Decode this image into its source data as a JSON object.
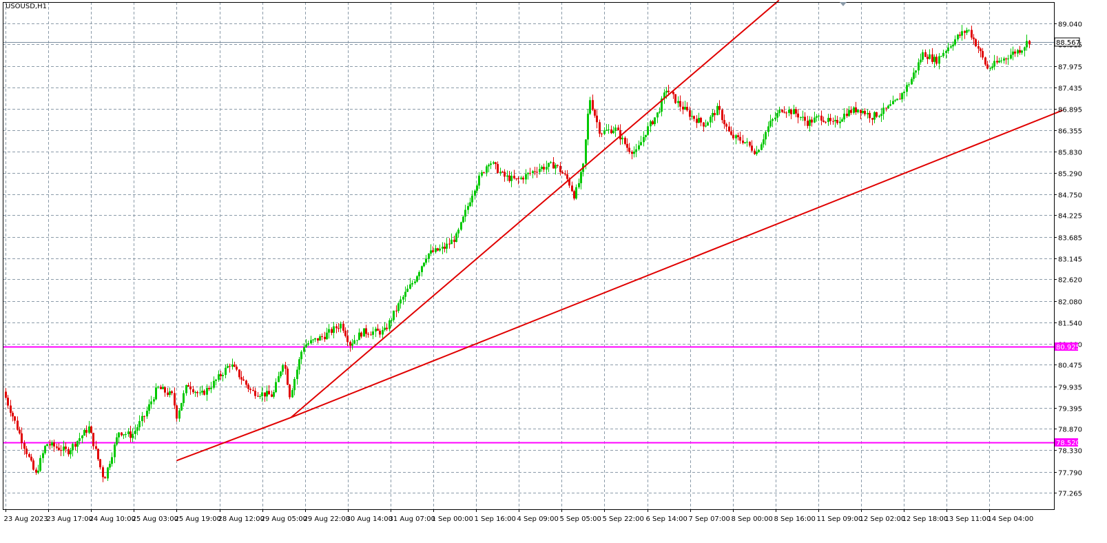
{
  "window": {
    "title": "USOUSD,H1"
  },
  "chart_data": {
    "type": "candlestick",
    "symbol": "USOUSD",
    "timeframe": "H1",
    "ylim": [
      77.265,
      89.3
    ],
    "grid": true,
    "colors": {
      "bull": "#00c800",
      "bear": "#e00000",
      "grid": "#8a9aa8",
      "trendline": "#e00000",
      "level": "#ff00ff",
      "current_price_line": "#7a8c9e",
      "axis_text": "#000000"
    },
    "y_ticks": [
      "89.040",
      "88.515",
      "87.975",
      "87.435",
      "86.895",
      "86.355",
      "85.830",
      "85.290",
      "84.750",
      "84.225",
      "83.685",
      "83.145",
      "82.620",
      "82.080",
      "81.540",
      "81.000",
      "80.475",
      "79.935",
      "79.395",
      "78.870",
      "78.330",
      "77.790",
      "77.265"
    ],
    "x_ticks": [
      "23 Aug 2023",
      "23 Aug 17:00",
      "24 Aug 10:00",
      "25 Aug 03:00",
      "25 Aug 19:00",
      "28 Aug 12:00",
      "29 Aug 05:00",
      "29 Aug 22:00",
      "30 Aug 14:00",
      "31 Aug 07:00",
      "1 Sep 00:00",
      "1 Sep 16:00",
      "4 Sep 09:00",
      "5 Sep 05:00",
      "5 Sep 22:00",
      "6 Sep 14:00",
      "7 Sep 07:00",
      "8 Sep 00:00",
      "8 Sep 16:00",
      "11 Sep 09:00",
      "12 Sep 02:00",
      "12 Sep 18:00",
      "13 Sep 11:00",
      "14 Sep 04:00"
    ],
    "current_price": {
      "label": "88.567",
      "value": 88.567
    },
    "levels": [
      {
        "label": "80.925",
        "value": 80.925
      },
      {
        "label": "78.520",
        "value": 78.52
      }
    ],
    "trendlines": [
      {
        "from": [
          4,
          78.07
        ],
        "to": [
          6.67,
          79.15
        ]
      },
      {
        "from": [
          6.67,
          79.15
        ],
        "to": [
          24.71,
          86.86
        ]
      },
      {
        "from": [
          6.67,
          79.15
        ],
        "to": [
          18.08,
          89.62
        ]
      }
    ],
    "price_path": [
      [
        0.0,
        79.8
      ],
      [
        0.5,
        78.4
      ],
      [
        0.75,
        77.7
      ],
      [
        1.0,
        78.5
      ],
      [
        1.5,
        78.3
      ],
      [
        2.0,
        78.9
      ],
      [
        2.35,
        77.6
      ],
      [
        2.7,
        78.8
      ],
      [
        3.0,
        78.7
      ],
      [
        3.3,
        79.2
      ],
      [
        3.6,
        79.9
      ],
      [
        3.95,
        79.7
      ],
      [
        4.05,
        79.2
      ],
      [
        4.3,
        80.0
      ],
      [
        4.6,
        79.7
      ],
      [
        4.9,
        80.0
      ],
      [
        5.3,
        80.5
      ],
      [
        5.8,
        79.8
      ],
      [
        6.3,
        79.7
      ],
      [
        6.55,
        80.6
      ],
      [
        6.7,
        79.7
      ],
      [
        7.0,
        80.95
      ],
      [
        7.5,
        81.2
      ],
      [
        7.9,
        81.5
      ],
      [
        8.1,
        81.0
      ],
      [
        8.4,
        81.3
      ],
      [
        8.9,
        81.3
      ],
      [
        9.3,
        82.1
      ],
      [
        9.6,
        82.6
      ],
      [
        9.9,
        83.25
      ],
      [
        10.3,
        83.4
      ],
      [
        10.6,
        83.7
      ],
      [
        10.8,
        84.3
      ],
      [
        11.0,
        84.9
      ],
      [
        11.35,
        85.6
      ],
      [
        11.7,
        85.2
      ],
      [
        12.0,
        85.1
      ],
      [
        12.5,
        85.4
      ],
      [
        12.9,
        85.5
      ],
      [
        13.2,
        85.1
      ],
      [
        13.35,
        84.7
      ],
      [
        13.55,
        85.4
      ],
      [
        13.7,
        87.2
      ],
      [
        13.95,
        86.3
      ],
      [
        14.3,
        86.4
      ],
      [
        14.6,
        85.9
      ],
      [
        14.8,
        85.8
      ],
      [
        15.0,
        86.3
      ],
      [
        15.3,
        86.8
      ],
      [
        15.5,
        87.4
      ],
      [
        15.8,
        87.0
      ],
      [
        16.1,
        86.7
      ],
      [
        16.4,
        86.5
      ],
      [
        16.7,
        86.9
      ],
      [
        17.0,
        86.2
      ],
      [
        17.3,
        86.1
      ],
      [
        17.6,
        85.8
      ],
      [
        17.9,
        86.5
      ],
      [
        18.2,
        86.9
      ],
      [
        18.5,
        86.8
      ],
      [
        18.8,
        86.55
      ],
      [
        19.1,
        86.7
      ],
      [
        19.4,
        86.5
      ],
      [
        19.7,
        86.8
      ],
      [
        20.0,
        86.9
      ],
      [
        20.3,
        86.7
      ],
      [
        20.6,
        86.85
      ],
      [
        20.9,
        87.1
      ],
      [
        21.2,
        87.6
      ],
      [
        21.5,
        88.3
      ],
      [
        21.8,
        88.1
      ],
      [
        22.0,
        88.35
      ],
      [
        22.3,
        88.7
      ],
      [
        22.55,
        88.9
      ],
      [
        22.8,
        88.4
      ],
      [
        23.0,
        87.9
      ],
      [
        23.3,
        88.1
      ],
      [
        23.6,
        88.3
      ],
      [
        23.8,
        88.4
      ],
      [
        23.95,
        88.6
      ]
    ]
  }
}
